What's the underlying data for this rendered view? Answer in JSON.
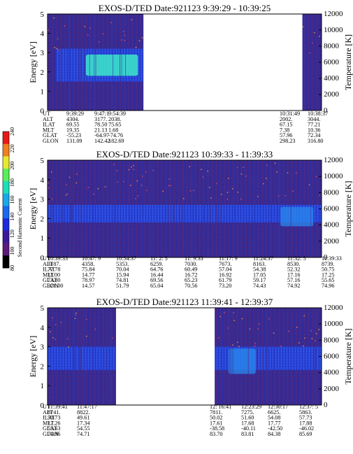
{
  "colors": {
    "background": "#ffffff",
    "spectrogram_base": "#3a2a8e",
    "spectrogram_band": "#2a4ae8",
    "hot": "#3ff2c8"
  },
  "colorbar": {
    "label": "Second Harmonic Current",
    "ticks": [
      "80",
      "100",
      "120",
      "140",
      "160",
      "180",
      "200",
      "220",
      "240"
    ],
    "colors": [
      "#000000",
      "#5a1a7a",
      "#3a1a9a",
      "#1a2ae0",
      "#1a6af0",
      "#1aa8e8",
      "#1ae0b8",
      "#58f058",
      "#e8e830",
      "#f08020",
      "#e81818"
    ]
  },
  "chart_data": [
    {
      "type": "heatmap",
      "title": "EXOS-D/TED   Date:921123  9:39:29 - 10:39:25",
      "ylabel": "Energy [eV]",
      "ylabel_right": "Temperature [K]",
      "ylim": [
        0,
        5
      ],
      "yticks": [
        "0",
        "1",
        "2",
        "3",
        "4",
        "5"
      ],
      "ylim_right": [
        0,
        12000
      ],
      "yticks_right": [
        "0",
        "2000",
        "4000",
        "6000",
        "8000",
        "10000",
        "12000"
      ],
      "data_gaps": [
        [
          0.35,
          0.93
        ]
      ],
      "band": {
        "x": [
          0.03,
          0.35
        ],
        "y": [
          1.5,
          3.2
        ]
      },
      "hot": {
        "x": [
          0.14,
          0.33
        ],
        "y": [
          1.8,
          2.9
        ]
      },
      "orbit_table": {
        "rows": [
          {
            "label": "UT",
            "values": [
              "9:39:29",
              "9:47:1",
              "9:54:39",
              "",
              "10:31:49",
              "10:38:37"
            ]
          },
          {
            "label": "ALT",
            "values": [
              "4304.",
              "3177.",
              "2038.",
              "",
              "2002.",
              "3044."
            ]
          },
          {
            "label": "ILAT",
            "values": [
              "69.55",
              "78.50",
              "75.65",
              "",
              "67.15",
              "77.21"
            ]
          },
          {
            "label": "MLT",
            "values": [
              "19.35",
              "21.13",
              "1.68",
              "",
              "7.38",
              "10.36"
            ]
          },
          {
            "label": "GLAT",
            "values": [
              "-55.23",
              "-64.97",
              "-74.76",
              "",
              "57.96",
              "72.34"
            ]
          },
          {
            "label": "GLON",
            "values": [
              "131.09",
              "142.42",
              "182.69",
              "",
              "298.23",
              "316.80"
            ]
          }
        ]
      }
    },
    {
      "type": "heatmap",
      "title": "EXOS-D/TED   Date:921123  10:39:33 - 11:39:33",
      "ylabel": "Energy [eV]",
      "ylabel_right": "Temperature [K]",
      "ylim": [
        0,
        5
      ],
      "yticks": [
        "0",
        "1",
        "2",
        "3",
        "4",
        "5"
      ],
      "ylim_right": [
        0,
        12000
      ],
      "yticks_right": [
        "0",
        "2000",
        "4000",
        "6000",
        "8000",
        "10000",
        "12000"
      ],
      "data_gaps": [],
      "band": {
        "x": [
          0.0,
          1.0
        ],
        "y": [
          1.8,
          2.7
        ]
      },
      "hot": {
        "x": [
          0.85,
          0.97
        ],
        "y": [
          1.6,
          2.6
        ]
      },
      "orbit_table": {
        "rows": [
          {
            "label": "UT",
            "values": [
              "10:39:33",
              "10:47: 9",
              "10:54:37",
              "11: 2: 5",
              "11: 9:33",
              "11:17: 9",
              "11:24:37",
              "11:32: 5",
              "11:39:33"
            ]
          },
          {
            "label": "ALT",
            "values": [
              "3187.",
              "4358.",
              "5353.",
              "6259.",
              "7030.",
              "7673.",
              "8163.",
              "8530.",
              "8739."
            ]
          },
          {
            "label": "ILAT",
            "values": [
              "77.78",
              "75.84",
              "70.04",
              "64.76",
              "60.49",
              "57.04",
              "54.38",
              "52.32",
              "50.75"
            ]
          },
          {
            "label": "MLT",
            "values": [
              "11.00",
              "14.77",
              "15.94",
              "16.44",
              "16.72",
              "16.92",
              "17.05",
              "17.16",
              "17.25"
            ]
          },
          {
            "label": "GLAT",
            "values": [
              "73.80",
              "78.97",
              "74.81",
              "69.56",
              "65.23",
              "61.79",
              "59.17",
              "57.16",
              "55.65"
            ]
          },
          {
            "label": "GLON",
            "values": [
              "321.00",
              "14.57",
              "51.79",
              "65.04",
              "70.56",
              "73.20",
              "74.43",
              "74.92",
              "74.96"
            ]
          }
        ]
      }
    },
    {
      "type": "heatmap",
      "title": "EXOS-D/TED   Date:921123  11:39:41 - 12:39:37",
      "ylabel": "Energy [eV]",
      "ylabel_right": "Temperature [K]",
      "ylim": [
        0,
        5
      ],
      "yticks": [
        "0",
        "1",
        "2",
        "3",
        "4",
        "5"
      ],
      "ylim_right": [
        0,
        12000
      ],
      "yticks_right": [
        "0",
        "2000",
        "4000",
        "6000",
        "8000",
        "10000",
        "12000"
      ],
      "data_gaps": [
        [
          0.25,
          0.61
        ]
      ],
      "band": {
        "x": [
          0.0,
          1.0
        ],
        "y": [
          1.8,
          3.0
        ]
      },
      "hot": {
        "x": [
          0.66,
          0.76
        ],
        "y": [
          1.6,
          2.9
        ]
      },
      "orbit_table": {
        "rows": [
          {
            "label": "UT",
            "values": [
              "11:39:41",
              "11:47:17",
              "",
              "",
              "12: 16:41",
              "12:23:29",
              "12:30:17",
              "12:37: 5"
            ]
          },
          {
            "label": "ALT",
            "values": [
              "8741.",
              "8822.",
              "",
              "",
              "7811.",
              "7275.",
              "6625.",
              "5863."
            ]
          },
          {
            "label": "ILAT",
            "values": [
              "50.73",
              "49.61",
              "",
              "",
              "50.02",
              "51.60",
              "54.08",
              "57.73"
            ]
          },
          {
            "label": "MLT",
            "values": [
              "17.26",
              "17.34",
              "",
              "",
              "17.61",
              "17.68",
              "17.77",
              "17.88"
            ]
          },
          {
            "label": "GLAT",
            "values": [
              "55.63",
              "54.55",
              "",
              "",
              "-38.58",
              "-40.11",
              "-42.50",
              "-46.02"
            ]
          },
          {
            "label": "GLON",
            "values": [
              "74.96",
              "74.71",
              "",
              "",
              "83.70",
              "83.81",
              "84.38",
              "85.69"
            ]
          }
        ]
      }
    }
  ]
}
